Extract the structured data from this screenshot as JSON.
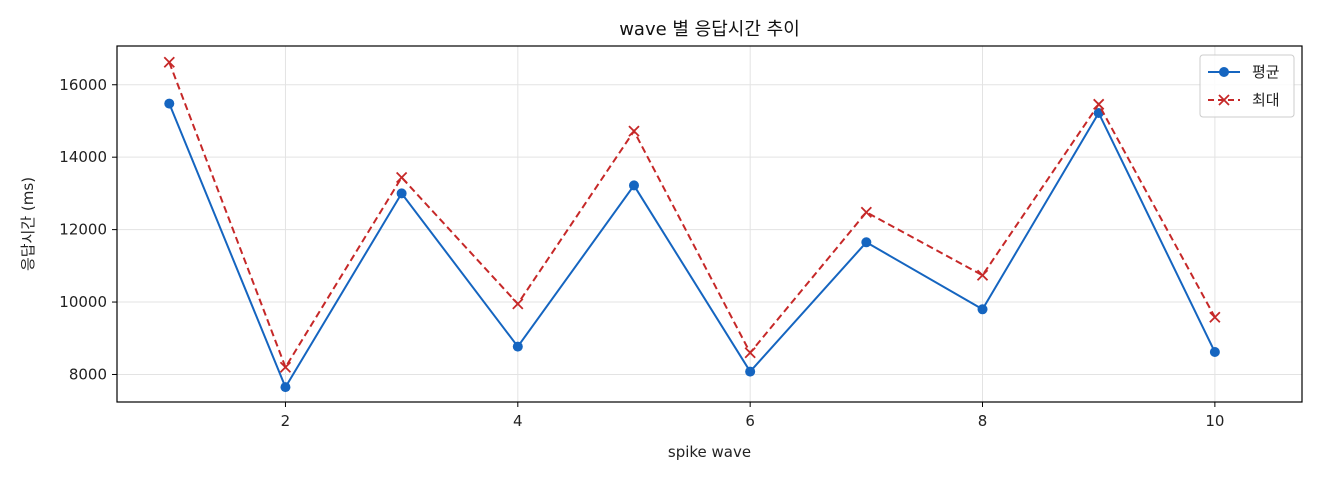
{
  "chart_data": {
    "type": "line",
    "title": "wave 별 응답시간 추이",
    "xlabel": "spike wave",
    "ylabel": "응답시간 (ms)",
    "x": [
      1,
      2,
      3,
      4,
      5,
      6,
      7,
      8,
      9,
      10
    ],
    "xlim": [
      0.55,
      10.75
    ],
    "ylim": [
      7240,
      17070
    ],
    "x_ticks": [
      2,
      4,
      6,
      8,
      10
    ],
    "y_ticks": [
      8000,
      10000,
      12000,
      14000,
      16000
    ],
    "grid": true,
    "legend_position": "top-right",
    "series": [
      {
        "name": "평균",
        "color": "#1565c0",
        "line_style": "solid",
        "marker": "circle",
        "values": [
          15480,
          7650,
          13000,
          8770,
          13220,
          8080,
          11650,
          9800,
          15220,
          8620
        ]
      },
      {
        "name": "최대",
        "color": "#c62828",
        "line_style": "dashed",
        "marker": "x",
        "values": [
          16620,
          8200,
          13440,
          9950,
          14720,
          8600,
          12480,
          10740,
          15460,
          9580
        ]
      }
    ]
  }
}
